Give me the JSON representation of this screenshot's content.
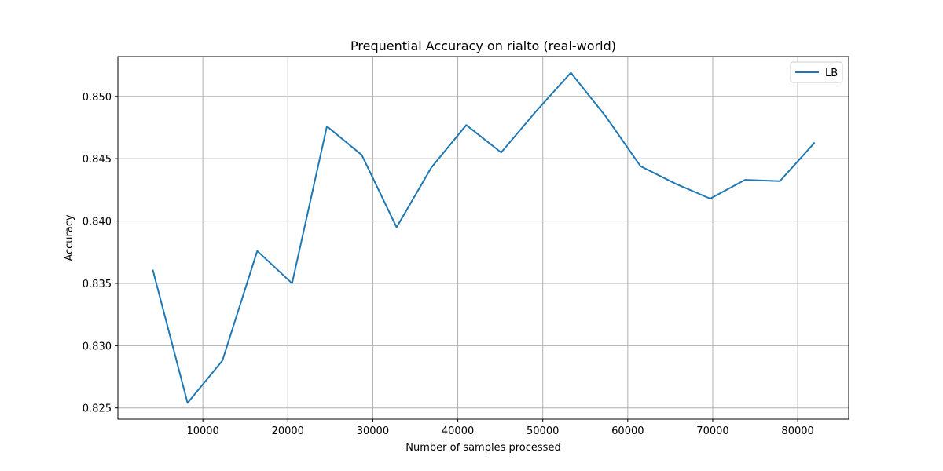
{
  "chart_data": {
    "type": "line",
    "title": "Prequential Accuracy on rialto (real-world)",
    "xlabel": "Number of samples processed",
    "ylabel": "Accuracy",
    "xlim": [
      0,
      86000
    ],
    "ylim": [
      0.8241,
      0.8532
    ],
    "xticks": [
      10000,
      20000,
      30000,
      40000,
      50000,
      60000,
      70000,
      80000
    ],
    "xtick_labels": [
      "10000",
      "20000",
      "30000",
      "40000",
      "50000",
      "60000",
      "70000",
      "80000"
    ],
    "yticks": [
      0.825,
      0.83,
      0.835,
      0.84,
      0.845,
      0.85
    ],
    "ytick_labels": [
      "0.825",
      "0.830",
      "0.835",
      "0.840",
      "0.845",
      "0.850"
    ],
    "grid": true,
    "legend_position": "top-right",
    "series": [
      {
        "name": "LB",
        "color": "#1f77b4",
        "x": [
          4100,
          8200,
          12300,
          16400,
          20500,
          24600,
          28700,
          32800,
          36900,
          41000,
          45100,
          49200,
          53300,
          57400,
          61500,
          65600,
          69700,
          73800,
          77900,
          82000
        ],
        "y": [
          0.8361,
          0.8254,
          0.8288,
          0.8376,
          0.835,
          0.8476,
          0.8453,
          0.8395,
          0.8443,
          0.8477,
          0.8455,
          0.8488,
          0.8519,
          0.8484,
          0.8444,
          0.843,
          0.8418,
          0.8433,
          0.8432,
          0.8463
        ]
      }
    ]
  }
}
